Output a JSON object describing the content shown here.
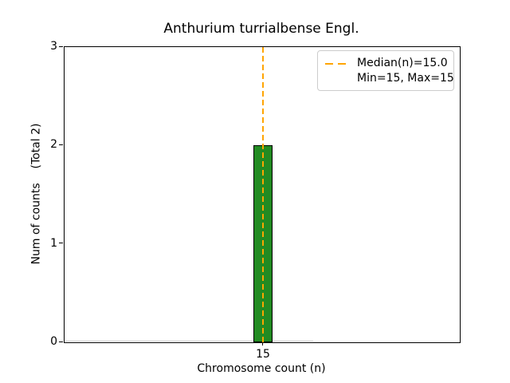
{
  "chart_data": {
    "type": "bar",
    "title": "Anthurium turrialbense Engl.",
    "xlabel": "Chromosome count (n)",
    "ylabel": "Num of counts    (Total 2)",
    "x": [
      15
    ],
    "values": [
      2
    ],
    "total_counts": 2,
    "median": 15.0,
    "min": 15,
    "max": 15,
    "ylim": [
      0,
      3
    ],
    "yticks": [
      0,
      1,
      2,
      3
    ],
    "xticks": [
      "15"
    ],
    "grid": false,
    "legend": {
      "position": "upper right",
      "entries": [
        {
          "label": "Median(n)=15.0",
          "line": "dashed"
        },
        {
          "label": "Min=15, Max=15",
          "line": "none"
        }
      ]
    },
    "colors": {
      "bar_fill": "#228B22",
      "bar_edge": "#000000",
      "median_line": "#FFA500",
      "legend_border": "#cccccc",
      "zero_bins_baseline": "#c9c9c9",
      "axes": "#000000"
    }
  }
}
